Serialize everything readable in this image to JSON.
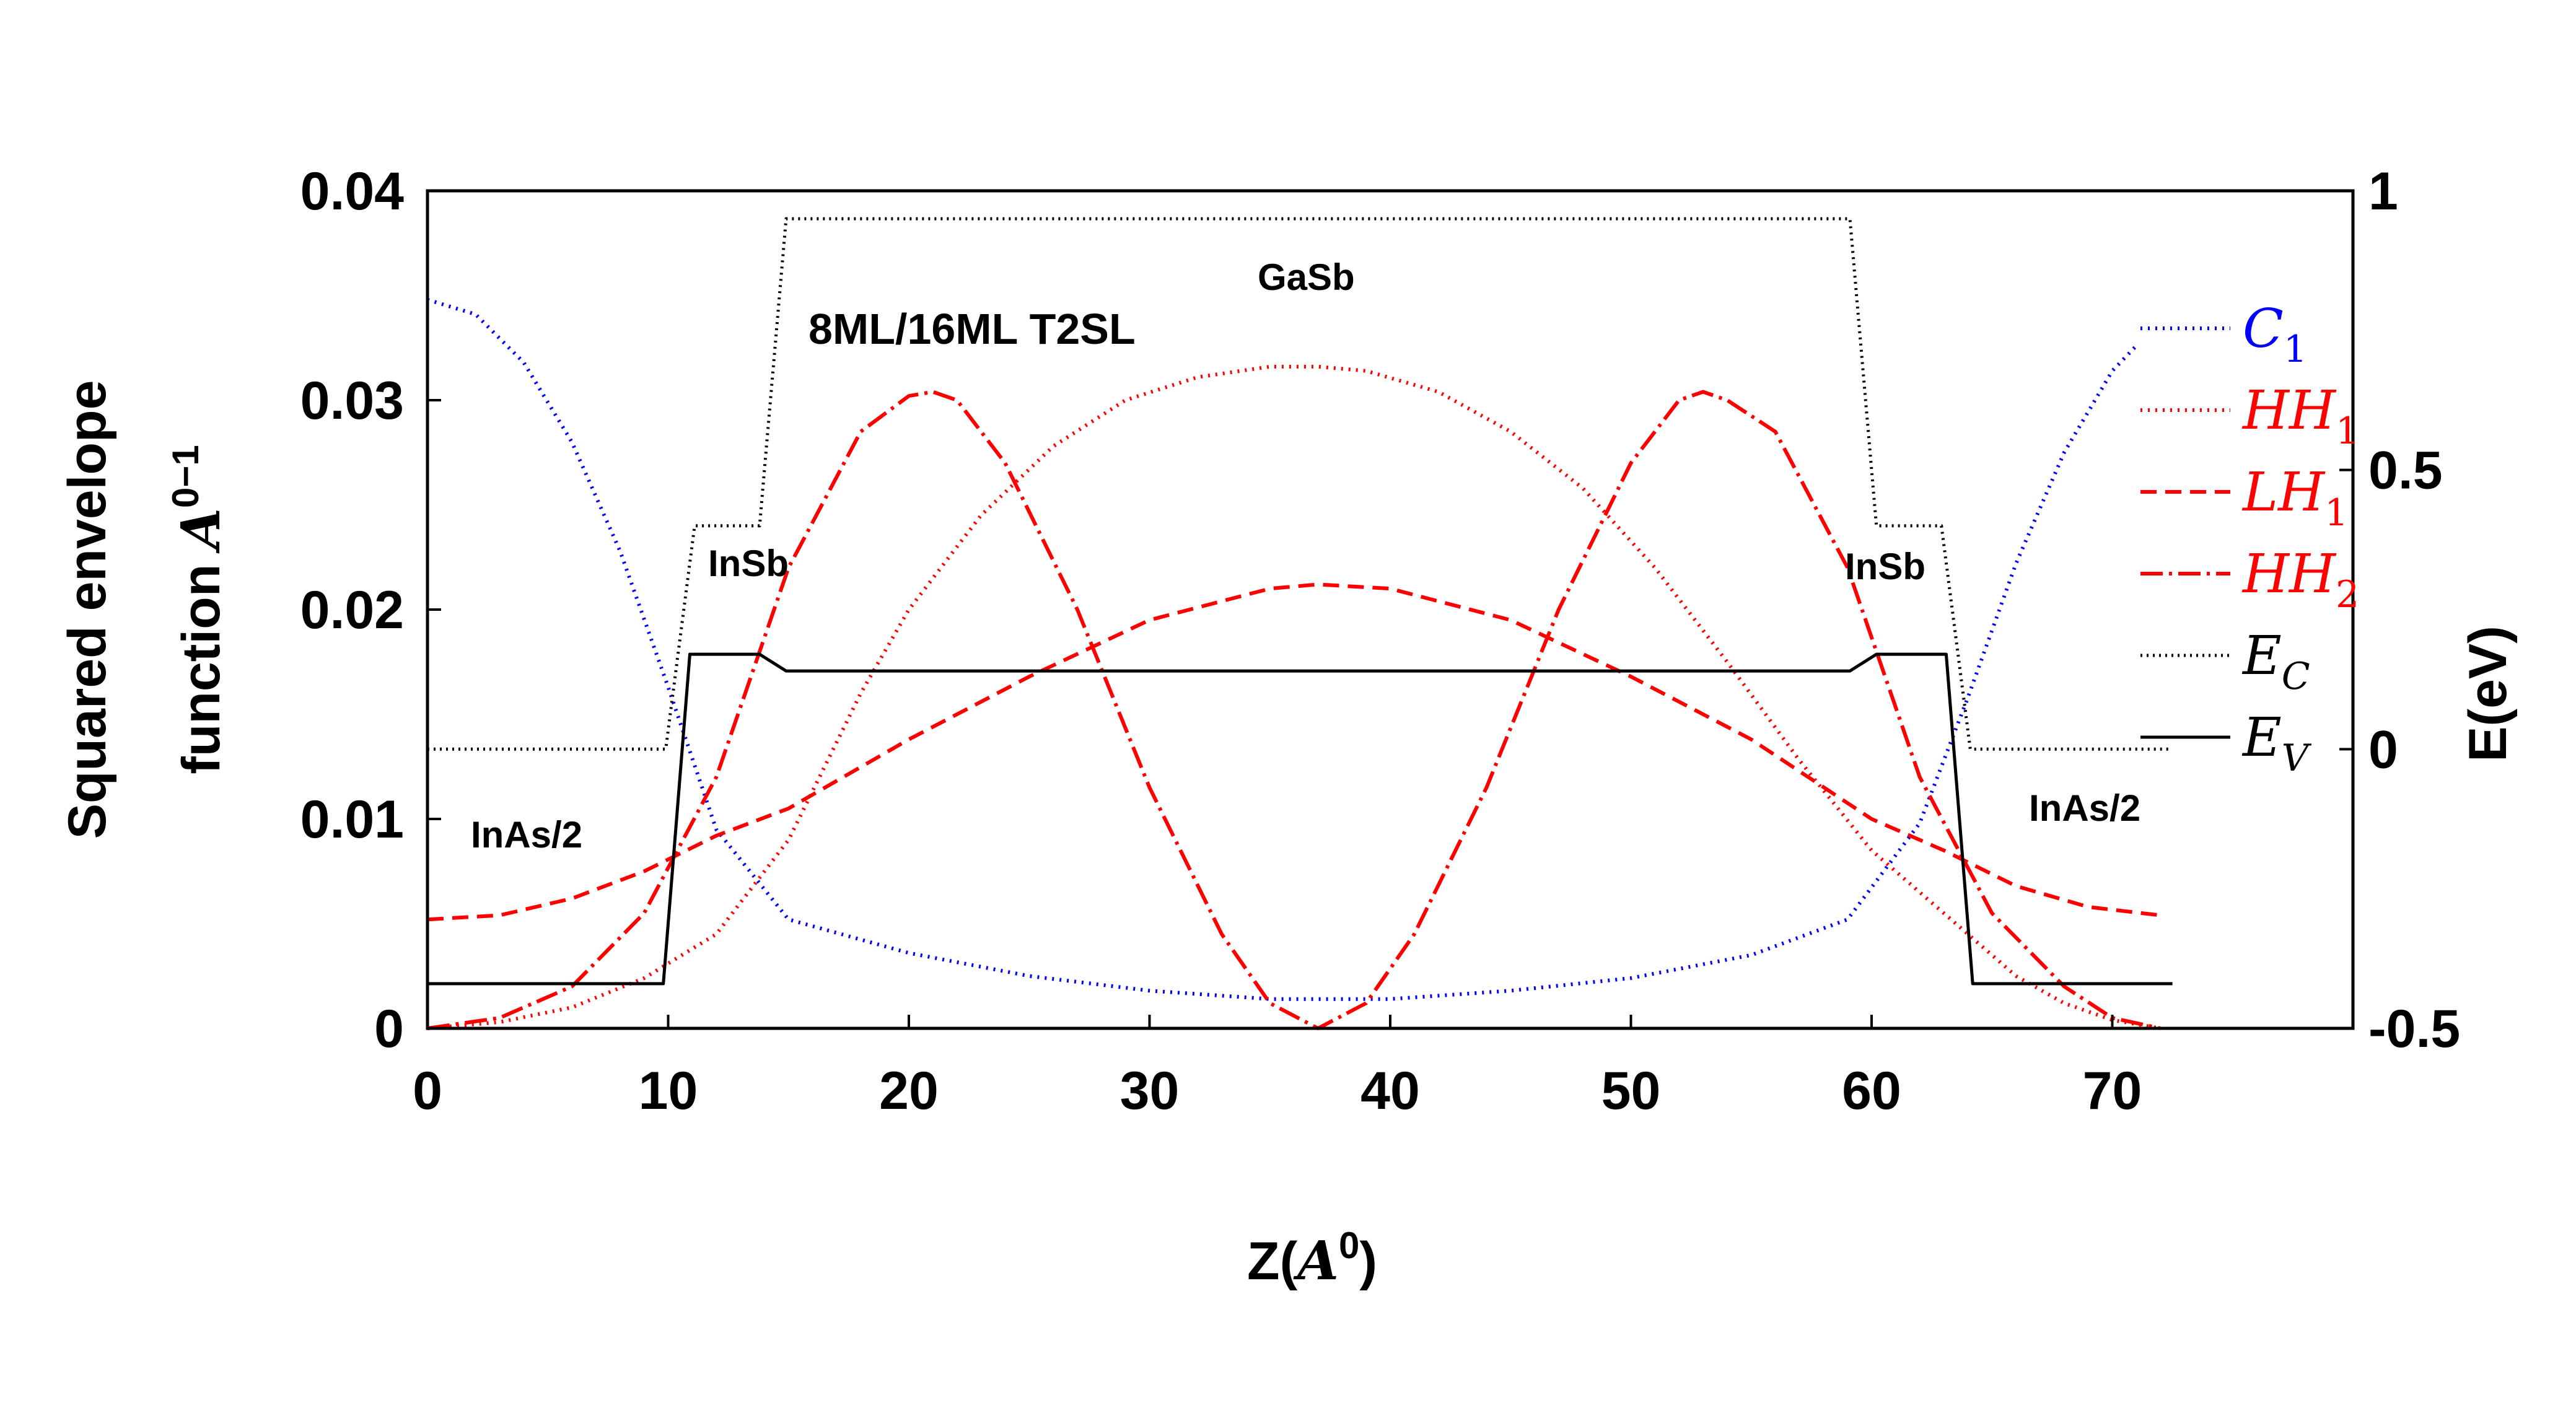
{
  "chart_data": {
    "type": "line",
    "title": "",
    "xlabel": "Z(A0)",
    "xlabel_prefix": "Z(",
    "xlabel_base": "A",
    "xlabel_sup": "0",
    "xlabel_suffix": ")",
    "ylabel_left_line1": "Squared envelope",
    "ylabel_left_line2": "function",
    "ylabel_left_base": "A",
    "ylabel_left_sup": "0−1",
    "ylabel_right": "E(eV)",
    "xlim": [
      0,
      80
    ],
    "ylim_left": [
      0,
      0.04
    ],
    "ylim_right": [
      -0.5,
      1
    ],
    "x_ticks": [
      "0",
      "10",
      "20",
      "30",
      "40",
      "50",
      "60",
      "70"
    ],
    "y_left_ticks": [
      "0",
      "0.01",
      "0.02",
      "0.03",
      "0.04"
    ],
    "y_right_ticks": [
      "-0.5",
      "0",
      "0.5",
      "1"
    ],
    "annotations": {
      "structure": "8ML/16ML T2SL",
      "gasb": "GaSb",
      "insb_left": "InSb",
      "insb_right": "InSb",
      "inas_left": "InAs/2",
      "inas_right": "InAs/2"
    },
    "legend_position": "right",
    "series": [
      {
        "name": "C1",
        "label_base": "C",
        "label_sub": "1",
        "color": "#0000ff",
        "dash": "dotted",
        "axis": "left",
        "x": [
          0,
          2,
          4,
          6,
          8,
          10,
          12,
          15,
          20,
          25,
          30,
          35,
          37,
          40,
          45,
          50,
          55,
          59,
          62,
          64,
          66,
          68,
          70,
          71
        ],
        "y": [
          0.0348,
          0.0341,
          0.0318,
          0.028,
          0.0228,
          0.0163,
          0.0095,
          0.0052,
          0.0036,
          0.0025,
          0.0018,
          0.0014,
          0.0014,
          0.0014,
          0.0018,
          0.0024,
          0.0035,
          0.0052,
          0.0098,
          0.0158,
          0.0222,
          0.0275,
          0.0314,
          0.0326
        ]
      },
      {
        "name": "HH1",
        "label_base": "HH",
        "label_sub": "1",
        "color": "#ff0000",
        "dash": "dotted",
        "axis": "left",
        "x": [
          0,
          3,
          6,
          9,
          12,
          15,
          18,
          20,
          23,
          26,
          29,
          32,
          35,
          37,
          39,
          42,
          45,
          48,
          51,
          54,
          57,
          60,
          62,
          64,
          66,
          68,
          70,
          72
        ],
        "y": [
          0.0,
          0.0003,
          0.001,
          0.0024,
          0.0045,
          0.009,
          0.016,
          0.02,
          0.0245,
          0.0278,
          0.03,
          0.0311,
          0.0316,
          0.0316,
          0.0314,
          0.0304,
          0.0285,
          0.0258,
          0.022,
          0.0175,
          0.0128,
          0.0085,
          0.0065,
          0.0045,
          0.0025,
          0.0012,
          0.0004,
          0.0
        ]
      },
      {
        "name": "LH1",
        "label_base": "LH",
        "label_sub": "1",
        "color": "#ff0000",
        "dash": "dashed",
        "axis": "left",
        "x": [
          0,
          3,
          6,
          9,
          12,
          15,
          20,
          25,
          30,
          35,
          37,
          40,
          45,
          50,
          55,
          60,
          63,
          66,
          69,
          72
        ],
        "y": [
          0.0052,
          0.0054,
          0.0062,
          0.0075,
          0.0092,
          0.0105,
          0.0138,
          0.0168,
          0.0195,
          0.021,
          0.0212,
          0.021,
          0.0195,
          0.0168,
          0.0138,
          0.01,
          0.0085,
          0.0068,
          0.0058,
          0.0054
        ]
      },
      {
        "name": "HH2",
        "label_base": "HH",
        "label_sub": "2",
        "color": "#ff0000",
        "dash": "dashdot",
        "axis": "left",
        "x": [
          0,
          3,
          6,
          9,
          12,
          15,
          18,
          20,
          21,
          22,
          24,
          27,
          30,
          33,
          35,
          37,
          39,
          41,
          44,
          47,
          50,
          52,
          53,
          54,
          56,
          59,
          62,
          65,
          68,
          70,
          72
        ],
        "y": [
          0.0,
          0.0005,
          0.002,
          0.0055,
          0.012,
          0.022,
          0.0285,
          0.0302,
          0.0304,
          0.03,
          0.027,
          0.02,
          0.0115,
          0.0045,
          0.0012,
          0.0,
          0.0012,
          0.0045,
          0.0115,
          0.02,
          0.027,
          0.03,
          0.0304,
          0.03,
          0.0285,
          0.022,
          0.012,
          0.0055,
          0.002,
          0.0005,
          0.0
        ]
      },
      {
        "name": "EC",
        "label_base": "E",
        "label_sub": "C",
        "color": "#000000",
        "dash": "densedot",
        "axis": "right",
        "x": [
          0,
          9.9,
          11.1,
          13.8,
          14.9,
          59.1,
          60.2,
          62.9,
          64.1,
          72.5
        ],
        "y": [
          0.0,
          0.0,
          0.4,
          0.4,
          0.95,
          0.95,
          0.4,
          0.4,
          0.0,
          0.0
        ]
      },
      {
        "name": "EV",
        "label_base": "E",
        "label_sub": "V",
        "color": "#000000",
        "dash": "solid",
        "axis": "right",
        "x": [
          0,
          9.8,
          10.9,
          13.8,
          14.9,
          59.1,
          60.2,
          63.1,
          64.2,
          72.5
        ],
        "y": [
          -0.42,
          -0.42,
          0.17,
          0.17,
          0.14,
          0.14,
          0.17,
          0.17,
          -0.42,
          -0.42
        ]
      }
    ]
  }
}
